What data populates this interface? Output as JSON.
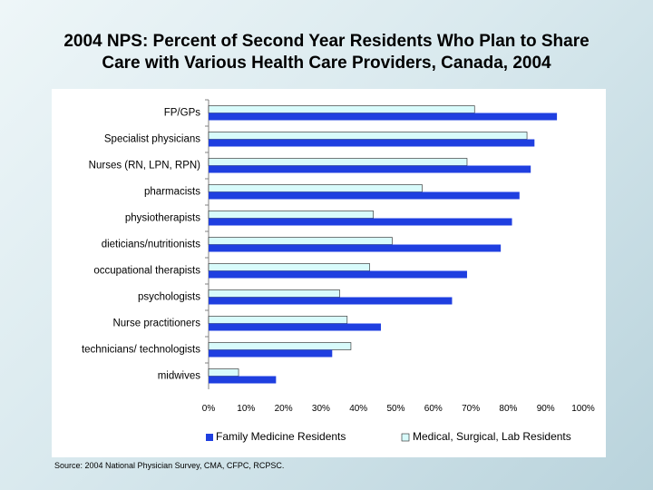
{
  "title_line1": "2004 NPS: Percent of Second Year Residents Who Plan to Share",
  "title_line2": "Care with Various Health Care Providers, Canada, 2004",
  "source": "Source: 2004 National Physician Survey, CMA, CFPC, RCPSC.",
  "colors": {
    "family": "#1f3fe0",
    "msl": "#d8fbfb",
    "grid": "#000000",
    "axis": "#808080"
  },
  "chart_data": {
    "type": "bar",
    "orientation": "horizontal",
    "categories": [
      "FP/GPs",
      "Specialist physicians",
      "Nurses (RN, LPN, RPN)",
      "pharmacists",
      "physiotherapists",
      "dieticians/nutritionists",
      "occupational therapists",
      "psychologists",
      "Nurse practitioners",
      "technicians/ technologists",
      "midwives"
    ],
    "series": [
      {
        "name": "Family Medicine Residents",
        "values": [
          93,
          87,
          86,
          83,
          81,
          78,
          69,
          65,
          46,
          33,
          18
        ]
      },
      {
        "name": "Medical, Surgical, Lab Residents",
        "values": [
          71,
          85,
          69,
          57,
          44,
          49,
          43,
          35,
          37,
          38,
          8
        ]
      }
    ],
    "xlim": [
      0,
      100
    ],
    "x_ticks": [
      "0%",
      "10%",
      "20%",
      "30%",
      "40%",
      "50%",
      "60%",
      "70%",
      "80%",
      "90%",
      "100%"
    ],
    "legend_position": "bottom",
    "grid": false
  }
}
